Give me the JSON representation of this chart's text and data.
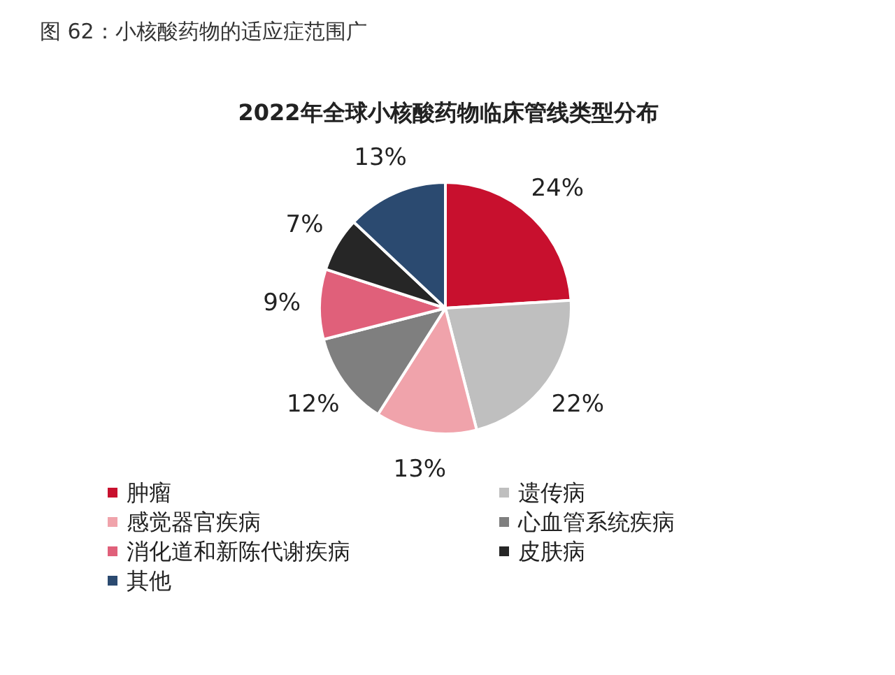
{
  "chart_data": {
    "type": "pie",
    "title": "图 62：小核酸药物的适应症范围广",
    "subtitle": "2022年全球小核酸药物临床管线类型分布",
    "categories": [
      "肿瘤",
      "遗传病",
      "感觉器官疾病",
      "心血管系统疾病",
      "消化道和新陈代谢疾病",
      "皮肤病",
      "其他"
    ],
    "values": [
      24,
      22,
      13,
      12,
      9,
      7,
      13
    ],
    "value_labels": [
      "24%",
      "22%",
      "13%",
      "12%",
      "9%",
      "7%",
      "13%"
    ],
    "colors": [
      "#c8102e",
      "#bfbfbf",
      "#f0a3ab",
      "#7f7f7f",
      "#e0607a",
      "#262626",
      "#2b4a70"
    ],
    "legend": "bottom"
  }
}
